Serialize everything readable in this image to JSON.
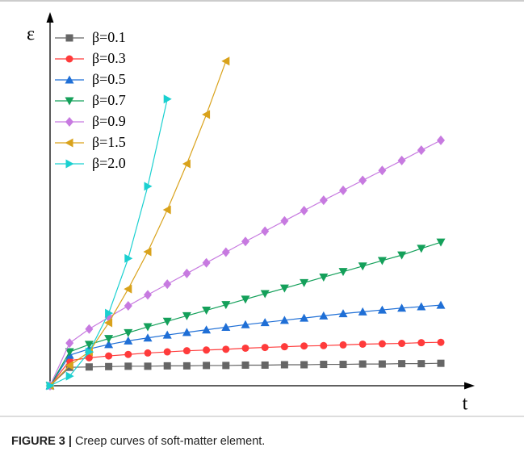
{
  "chart_data": {
    "type": "line",
    "xlabel": "t",
    "ylabel": "ε",
    "xlim": [
      0,
      21.6
    ],
    "ylim": [
      0,
      100
    ],
    "legend": "upper left",
    "series": [
      {
        "name": "β=0.1",
        "color": "#666666",
        "marker": "square",
        "x": [
          0,
          1,
          2,
          3,
          4,
          5,
          6,
          7,
          8,
          9,
          10,
          11,
          12,
          13,
          14,
          15,
          16,
          17,
          18,
          19,
          20
        ],
        "values": [
          0,
          5.0,
          5.1,
          5.2,
          5.3,
          5.3,
          5.4,
          5.4,
          5.5,
          5.5,
          5.6,
          5.6,
          5.7,
          5.7,
          5.8,
          5.8,
          5.9,
          5.9,
          6.0,
          6.0,
          6.1
        ]
      },
      {
        "name": "β=0.3",
        "color": "#ff3b3b",
        "marker": "circle",
        "x": [
          0,
          1,
          2,
          3,
          4,
          5,
          6,
          7,
          8,
          9,
          10,
          11,
          12,
          13,
          14,
          15,
          16,
          17,
          18,
          19,
          20
        ],
        "values": [
          0,
          6.8,
          7.6,
          8.1,
          8.5,
          8.9,
          9.2,
          9.5,
          9.7,
          9.9,
          10.2,
          10.4,
          10.6,
          10.8,
          10.9,
          11.1,
          11.3,
          11.4,
          11.5,
          11.7,
          11.8
        ]
      },
      {
        "name": "β=0.5",
        "color": "#1f6fd6",
        "marker": "triangle-up",
        "x": [
          0,
          1,
          2,
          3,
          4,
          5,
          6,
          7,
          8,
          9,
          10,
          11,
          12,
          13,
          14,
          15,
          16,
          17,
          18,
          19,
          20
        ],
        "values": [
          0,
          8.3,
          10.0,
          11.2,
          12.2,
          13.0,
          13.8,
          14.5,
          15.2,
          15.9,
          16.6,
          17.2,
          17.8,
          18.4,
          19.0,
          19.6,
          20.1,
          20.6,
          21.1,
          21.5,
          21.9
        ]
      },
      {
        "name": "β=0.7",
        "color": "#14a05a",
        "marker": "triangle-down",
        "x": [
          0,
          1,
          2,
          3,
          4,
          5,
          6,
          7,
          8,
          9,
          10,
          11,
          12,
          13,
          14,
          15,
          16,
          17,
          18,
          19,
          20
        ],
        "values": [
          0,
          9.2,
          11.2,
          12.8,
          14.4,
          16.0,
          17.5,
          19.0,
          20.5,
          22.0,
          23.5,
          25.0,
          26.5,
          28.0,
          29.5,
          31.0,
          32.5,
          34.0,
          35.5,
          37.3,
          39.0
        ]
      },
      {
        "name": "β=0.9",
        "color": "#c77ae0",
        "marker": "diamond",
        "x": [
          0,
          1,
          2,
          3,
          4,
          5,
          6,
          7,
          8,
          9,
          10,
          11,
          12,
          13,
          14,
          15,
          16,
          17,
          18,
          19,
          20
        ],
        "values": [
          0,
          11.6,
          15.4,
          18.6,
          21.7,
          24.7,
          27.6,
          30.5,
          33.4,
          36.3,
          39.2,
          42.0,
          44.8,
          47.6,
          50.4,
          53.1,
          55.8,
          58.5,
          61.2,
          64.0,
          66.7
        ]
      },
      {
        "name": "β=1.5",
        "color": "#d9a21b",
        "marker": "triangle-left",
        "x": [
          0,
          1,
          2,
          3,
          4,
          5,
          6,
          7,
          8,
          9
        ],
        "values": [
          0,
          5.5,
          9.2,
          17.1,
          26.3,
          36.4,
          47.8,
          60.3,
          73.7,
          88.2
        ]
      },
      {
        "name": "β=2.0",
        "color": "#1ad0d0",
        "marker": "triangle-right",
        "x": [
          0,
          1,
          2,
          3,
          4,
          5,
          6
        ],
        "values": [
          0,
          2.6,
          9.2,
          19.7,
          34.6,
          54.2,
          77.9
        ]
      }
    ]
  },
  "caption": {
    "label": "FIGURE 3 |",
    "text": "Creep curves of soft-matter element."
  }
}
